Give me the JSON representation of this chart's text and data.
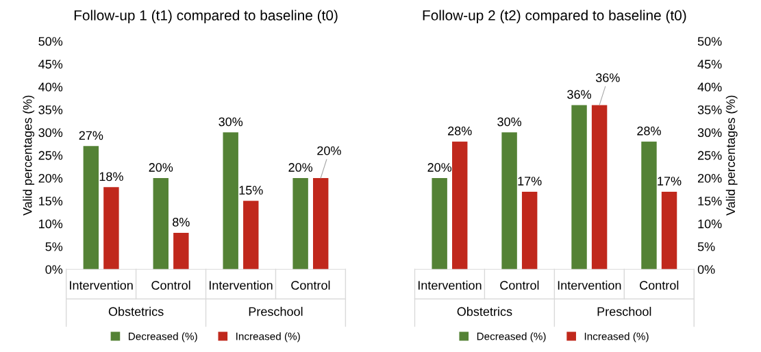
{
  "chart_data": [
    {
      "type": "bar",
      "title": "Follow-up 1 (t1) compared to baseline (t0)",
      "ylabel": "Valid percentages (%)",
      "categories": [
        "Intervention",
        "Control",
        "Intervention",
        "Control"
      ],
      "annotations": [
        "Obstetrics",
        "Preschool"
      ],
      "series": [
        {
          "name": "Decreased (%)",
          "color": "#548235",
          "values": [
            27,
            20,
            30,
            20
          ],
          "value_labels": [
            "27%",
            "20%",
            "30%",
            "20%"
          ]
        },
        {
          "name": "Increased (%)",
          "color": "#c0281c",
          "values": [
            18,
            8,
            15,
            20
          ],
          "value_labels": [
            "18%",
            "8%",
            "15%",
            "20%"
          ]
        }
      ],
      "ylim": [
        0,
        50
      ],
      "yticks": [
        {
          "value": 0,
          "label": "0%"
        },
        {
          "value": 5,
          "label": "5%"
        },
        {
          "value": 10,
          "label": "10%"
        },
        {
          "value": 15,
          "label": "15%"
        },
        {
          "value": 20,
          "label": "20%"
        },
        {
          "value": 25,
          "label": "25%"
        },
        {
          "value": 30,
          "label": "30%"
        },
        {
          "value": 35,
          "label": "35%"
        },
        {
          "value": 40,
          "label": "40%"
        },
        {
          "value": 45,
          "label": "45%"
        },
        {
          "value": 50,
          "label": "50%"
        }
      ],
      "grid": false,
      "legend": "bottom"
    },
    {
      "type": "bar",
      "title": "Follow-up 2 (t2) compared to baseline (t0)",
      "y2label": "Valid percentages (%)",
      "categories": [
        "Intervention",
        "Control",
        "Intervention",
        "Control"
      ],
      "annotations": [
        "Obstetrics",
        "Preschool"
      ],
      "series": [
        {
          "name": "Decreased (%)",
          "color": "#548235",
          "axis": "y2",
          "values": [
            20,
            30,
            36,
            28
          ],
          "value_labels": [
            "20%",
            "30%",
            "36%",
            "28%"
          ]
        },
        {
          "name": "Increased (%)",
          "color": "#c0281c",
          "axis": "y2",
          "values": [
            28,
            17,
            36,
            17
          ],
          "value_labels": [
            "28%",
            "17%",
            "36%",
            "17%"
          ]
        }
      ],
      "y2lim": [
        0,
        50
      ],
      "y2ticks": [
        {
          "value": 0,
          "label": "0%"
        },
        {
          "value": 5,
          "label": "5%"
        },
        {
          "value": 10,
          "label": "10%"
        },
        {
          "value": 15,
          "label": "15%"
        },
        {
          "value": 20,
          "label": "20%"
        },
        {
          "value": 25,
          "label": "25%"
        },
        {
          "value": 30,
          "label": "30%"
        },
        {
          "value": 35,
          "label": "35%"
        },
        {
          "value": 40,
          "label": "40%"
        },
        {
          "value": 45,
          "label": "45%"
        },
        {
          "value": 50,
          "label": "50%"
        }
      ],
      "grid": false,
      "legend": "bottom"
    }
  ]
}
